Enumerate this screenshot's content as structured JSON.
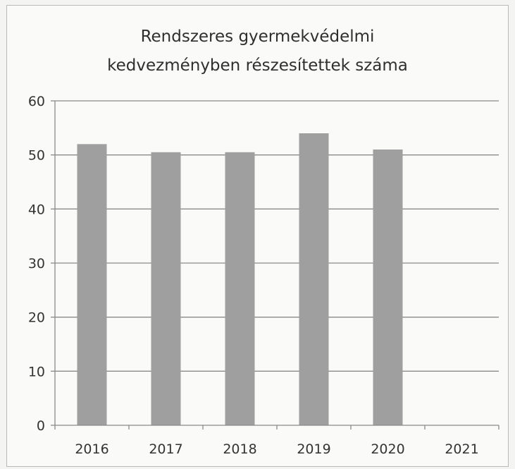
{
  "chart_data": {
    "type": "bar",
    "title_lines": [
      "Rendszeres gyermekvédelmi",
      "kedvezményben részesítettek száma"
    ],
    "categories": [
      "2016",
      "2017",
      "2018",
      "2019",
      "2020",
      "2021"
    ],
    "values": [
      52,
      50.5,
      50.5,
      54,
      51,
      null
    ],
    "ylim": [
      0,
      60
    ],
    "yticks": [
      0,
      10,
      20,
      30,
      40,
      50,
      60
    ],
    "grid": true,
    "legend": "none",
    "colors": {
      "bar": "#9f9f9f",
      "grid": "#8a8a8a",
      "axis": "#8a8a8a"
    }
  }
}
